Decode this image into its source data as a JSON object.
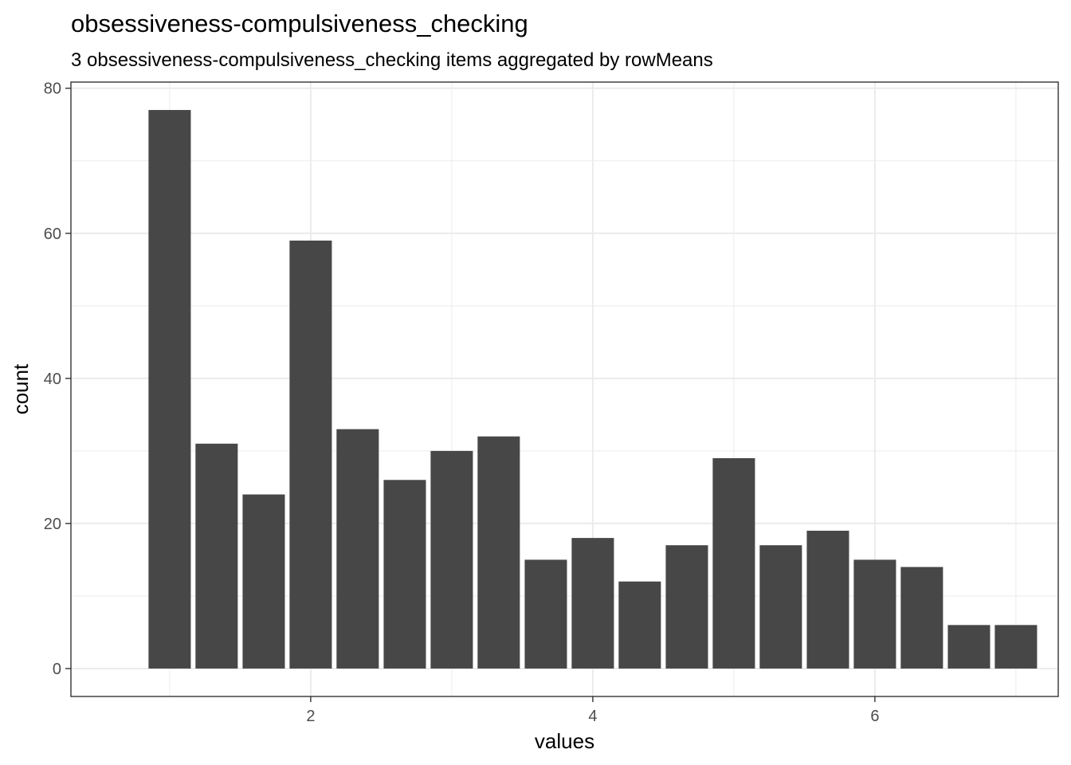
{
  "chart_data": {
    "type": "bar",
    "title": "obsessiveness-compulsiveness_checking",
    "subtitle": "3 obsessiveness-compulsiveness_checking items aggregated by rowMeans",
    "xlabel": "values",
    "ylabel": "count",
    "x": [
      1.0,
      1.333,
      1.667,
      2.0,
      2.333,
      2.667,
      3.0,
      3.333,
      3.667,
      4.0,
      4.333,
      4.667,
      5.0,
      5.333,
      5.667,
      6.0,
      6.333,
      6.667,
      7.0
    ],
    "values": [
      77,
      31,
      24,
      59,
      33,
      26,
      30,
      32,
      15,
      18,
      12,
      17,
      29,
      17,
      19,
      15,
      14,
      6,
      6
    ],
    "xlim": [
      0.3,
      7.3
    ],
    "ylim": [
      -3.85,
      80.85
    ],
    "x_ticks": [
      2,
      4,
      6
    ],
    "x_tick_labels": [
      "2",
      "4",
      "6"
    ],
    "y_ticks": [
      0,
      20,
      40,
      60,
      80
    ],
    "y_tick_labels": [
      "0",
      "20",
      "40",
      "60",
      "80"
    ],
    "bar_color": "#474747",
    "grid": true,
    "legend": "none"
  }
}
